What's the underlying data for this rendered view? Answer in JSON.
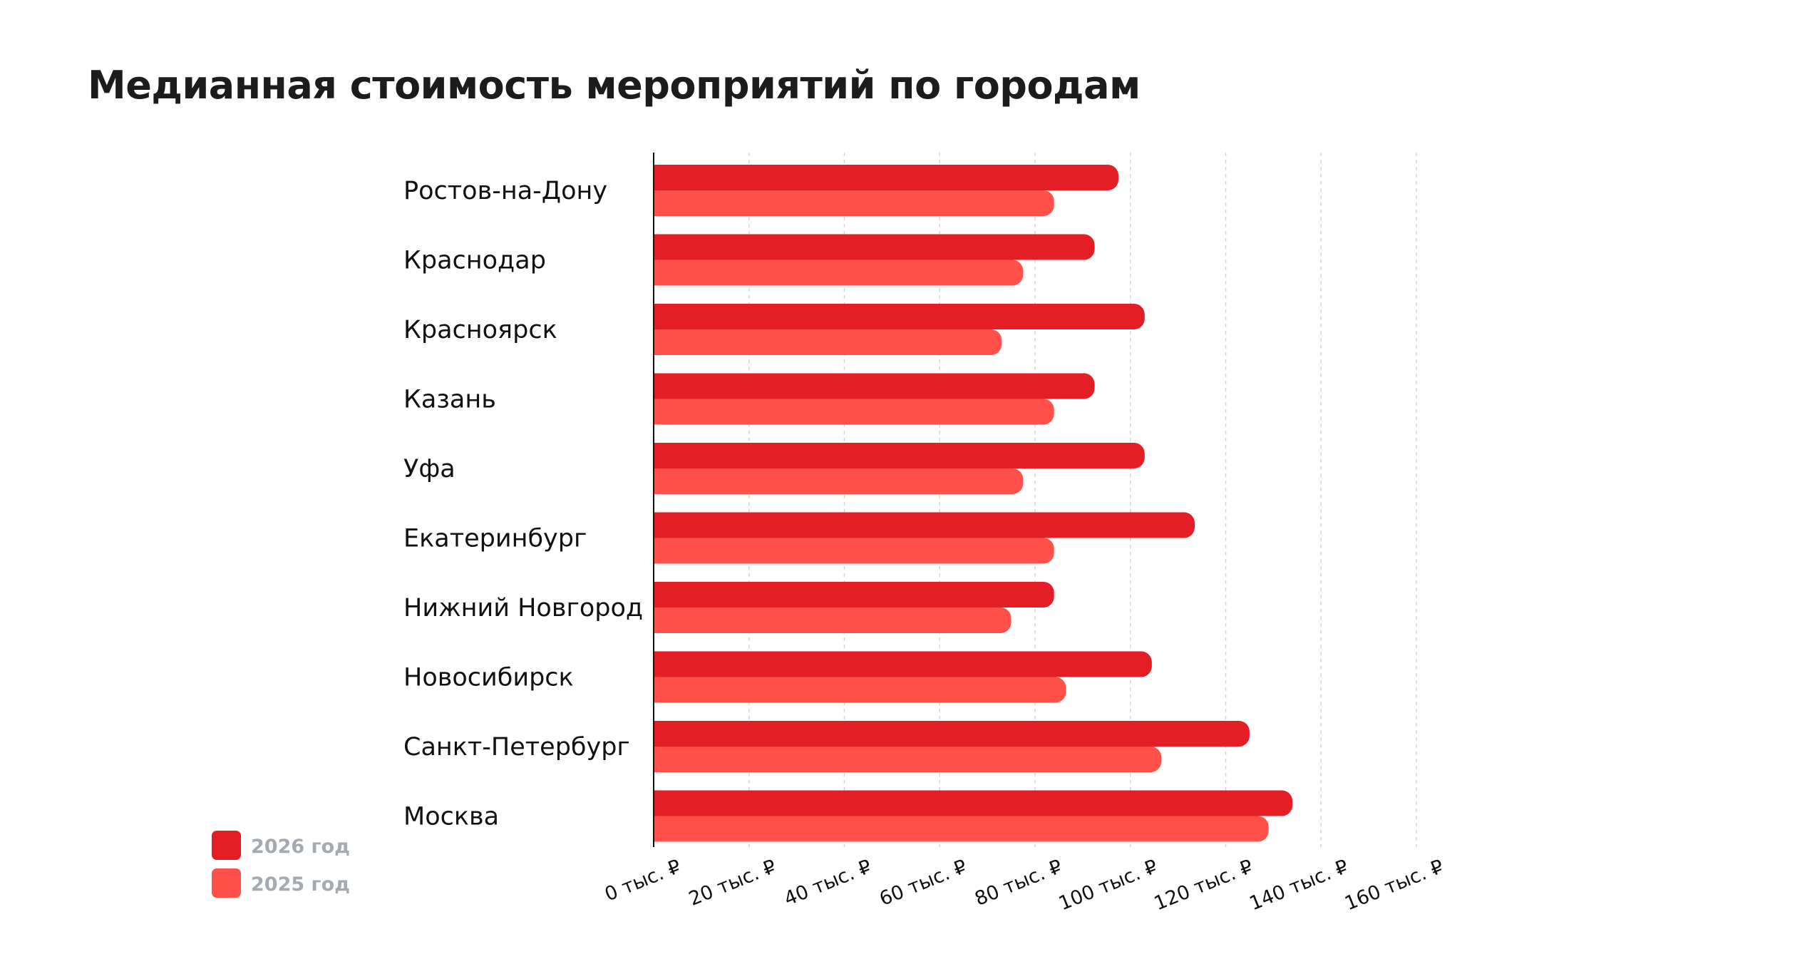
{
  "chart_data": {
    "type": "bar",
    "orientation": "horizontal",
    "title": "Медианная стоимость мероприятий по городам",
    "categories": [
      "Ростов-на-Дону",
      "Краснодар",
      "Красноярск",
      "Казань",
      "Уфа",
      "Екатеринбург",
      "Нижний Новгород",
      "Новосибирск",
      "Санкт-Петербург",
      "Москва"
    ],
    "series": [
      {
        "name": "2026 год",
        "color": "#e31e24",
        "values": [
          97.5,
          92.5,
          103,
          92.5,
          103,
          113.5,
          84,
          104.5,
          125,
          134
        ]
      },
      {
        "name": "2025 год",
        "color": "#ff514a",
        "values": [
          84,
          77.5,
          73,
          84,
          77.5,
          84,
          75,
          86.5,
          106.5,
          129
        ]
      }
    ],
    "xlim": [
      0,
      160
    ],
    "x_ticks": [
      0,
      20,
      40,
      60,
      80,
      100,
      120,
      140,
      160
    ],
    "x_tick_labels": [
      "0 тыс. ₽",
      "20 тыс. ₽",
      "40 тыс. ₽",
      "60 тыс. ₽",
      "80 тыс. ₽",
      "100 тыс. ₽",
      "120 тыс. ₽",
      "140 тыс. ₽",
      "160 тыс. ₽"
    ],
    "grid": true,
    "legend_position": "bottom-left"
  }
}
